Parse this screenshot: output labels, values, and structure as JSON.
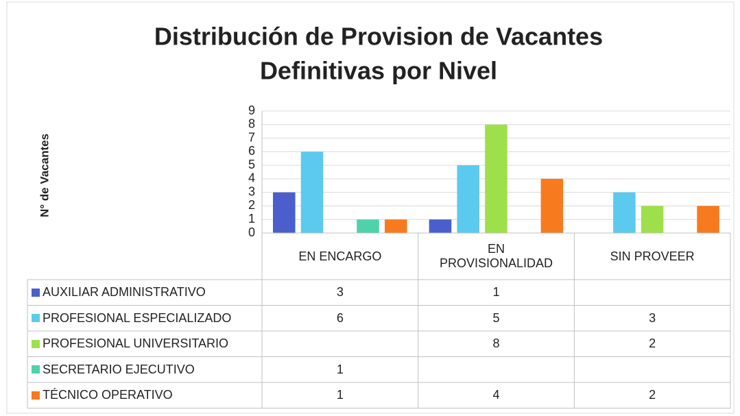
{
  "chart_data": {
    "type": "bar",
    "title": "Distribución de Provision de Vacantes Definitivas por Nivel",
    "y_label": "N° de Vacantes",
    "categories": [
      "EN ENCARGO",
      "EN PROVISIONALIDAD",
      "SIN PROVEER"
    ],
    "series": [
      {
        "name": "AUXILIAR ADMINISTRATIVO",
        "color": "#4a5fcc",
        "values": [
          3,
          1,
          null
        ]
      },
      {
        "name": "PROFESIONAL ESPECIALIZADO",
        "color": "#5ccaee",
        "values": [
          6,
          5,
          3
        ]
      },
      {
        "name": "PROFESIONAL UNIVERSITARIO",
        "color": "#9ee04c",
        "values": [
          null,
          8,
          2
        ]
      },
      {
        "name": "SECRETARIO EJECUTIVO",
        "color": "#4fd2aa",
        "values": [
          1,
          null,
          null
        ]
      },
      {
        "name": "TÉCNICO OPERATIVO",
        "color": "#f77b1e",
        "values": [
          1,
          4,
          2
        ]
      }
    ],
    "ylim": [
      0,
      9
    ],
    "yticks": [
      0,
      1,
      2,
      3,
      4,
      5,
      6,
      7,
      8,
      9
    ],
    "grid": true,
    "data_table": true
  }
}
